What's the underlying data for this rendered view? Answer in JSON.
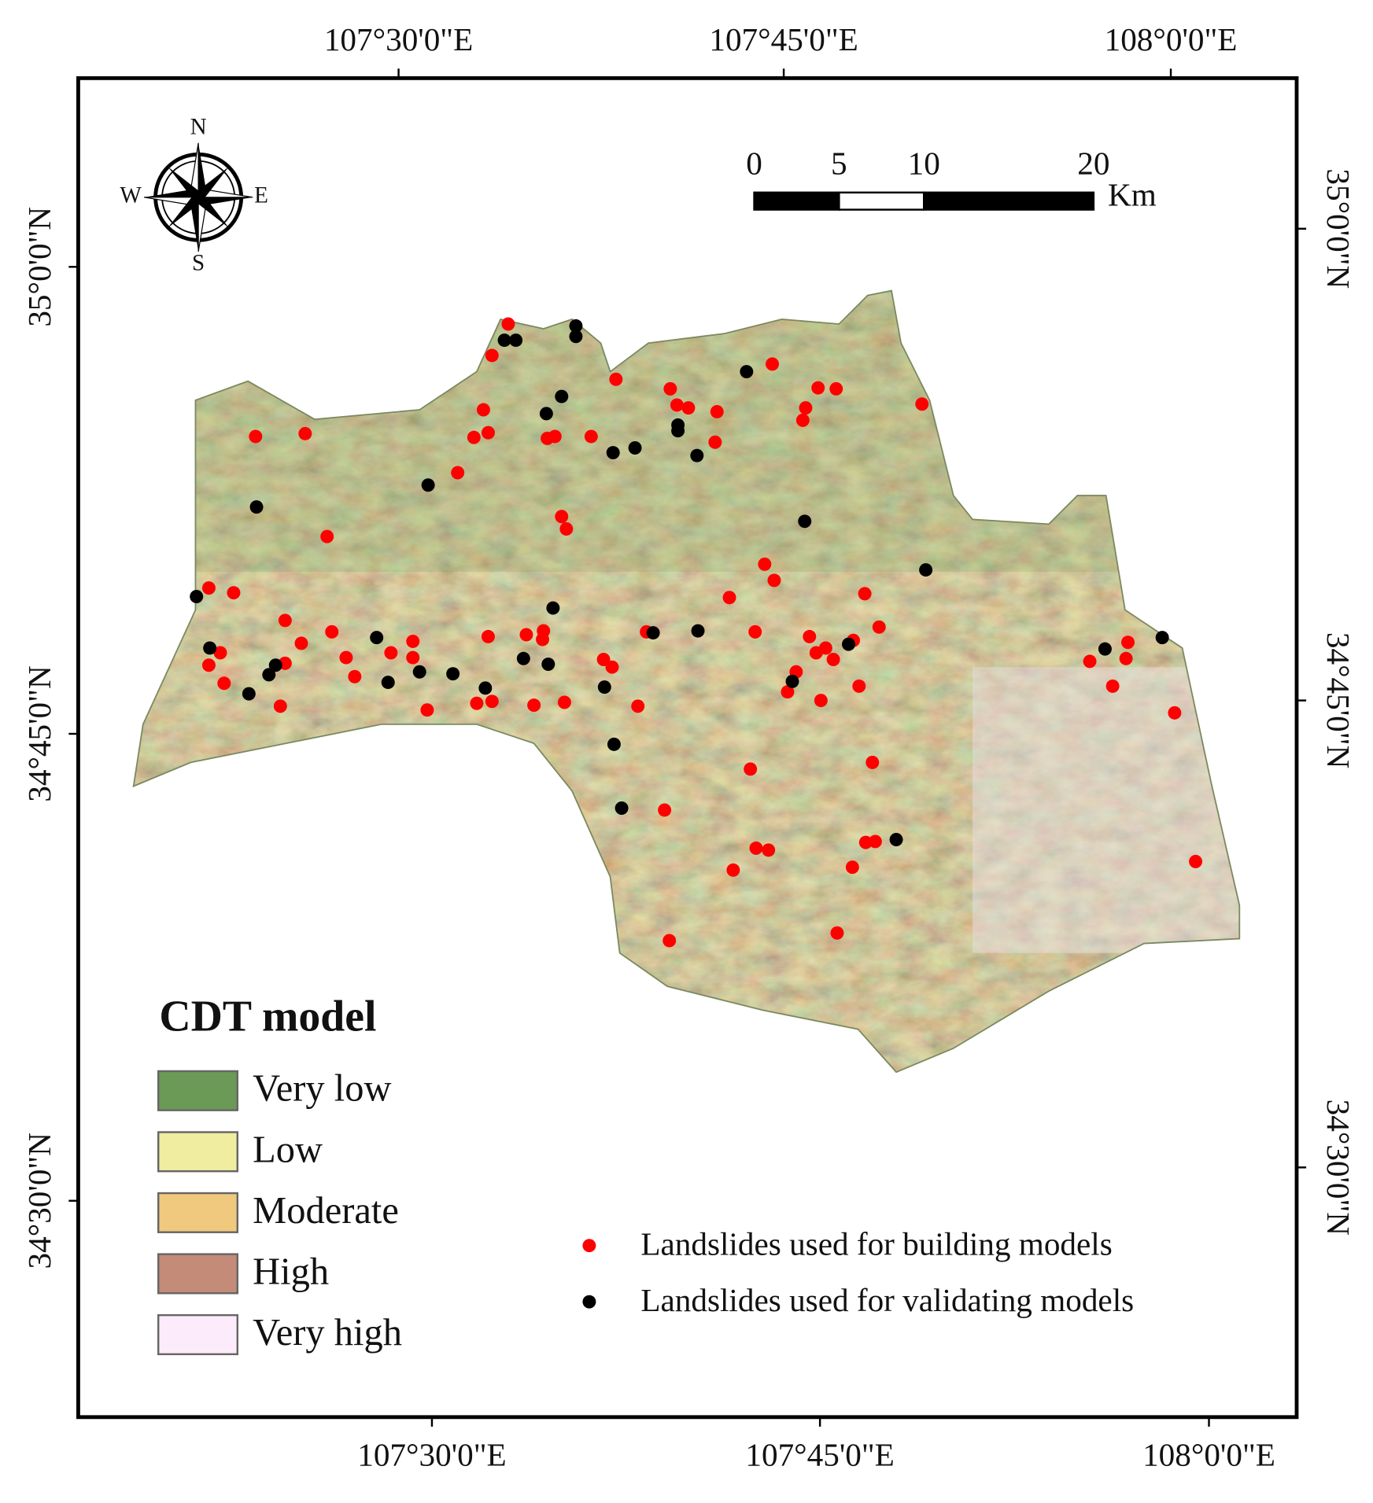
{
  "map": {
    "axis_labels": {
      "top": [
        "107°30'0\"E",
        "107°45'0\"E",
        "108°0'0\"E"
      ],
      "bottom": [
        "107°30'0\"E",
        "107°45'0\"E",
        "108°0'0\"E"
      ],
      "left": [
        "35°0'0\"N",
        "34°45'0\"N",
        "34°30'0\"N"
      ],
      "right": [
        "35°0'0\"N",
        "34°45'0\"N",
        "34°30'0\"N"
      ]
    },
    "scale_bar": {
      "ticks": [
        0,
        5,
        10,
        20
      ],
      "unit": "Km"
    },
    "compass": {
      "north": "N",
      "south": "S",
      "west": "W",
      "east": "E"
    },
    "legend": {
      "title": "CDT model",
      "classes": [
        {
          "label": "Very low",
          "color": "#6a9a55"
        },
        {
          "label": "Low",
          "color": "#f0eca0"
        },
        {
          "label": "Moderate",
          "color": "#f0c97f"
        },
        {
          "label": "High",
          "color": "#c48b79"
        },
        {
          "label": "Very high",
          "color": "#fcecfb"
        }
      ]
    },
    "points_legend": [
      {
        "label": "Landslides used for building models",
        "color": "#ff0000"
      },
      {
        "label": "Landslides used for validating models",
        "color": "#000000"
      }
    ]
  }
}
